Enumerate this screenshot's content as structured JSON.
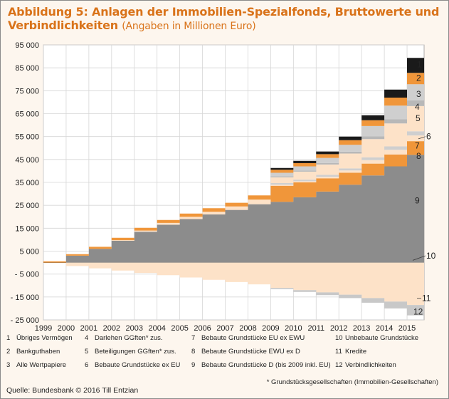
{
  "title": {
    "line1": "Abbildung 5: Anlagen der Immobilien-Spezialfonds, Bruttowerte und",
    "line2": "Verbindlichkeiten",
    "subtitle": "(Angaben in Millionen Euro)"
  },
  "chart_data": {
    "type": "area",
    "title": "Abbildung 5: Anlagen der Immobilien-Spezialfonds, Bruttowerte und Verbindlichkeiten",
    "unit": "(Angaben in Millionen Euro)",
    "ylim": [
      -25000,
      95000
    ],
    "yticks": [
      "95 000",
      "85 000",
      "75 000",
      "65 000",
      "55 000",
      "45 000",
      "35 000",
      "25 000",
      "15 000",
      "5 000",
      "- 5 000",
      "- 15 000",
      "- 25 000"
    ],
    "ytick_values": [
      95000,
      85000,
      75000,
      65000,
      55000,
      45000,
      35000,
      25000,
      15000,
      5000,
      -5000,
      -15000,
      -25000
    ],
    "x": [
      1999,
      2000,
      2001,
      2002,
      2003,
      2004,
      2005,
      2006,
      2007,
      2008,
      2009,
      2010,
      2011,
      2012,
      2013,
      2014,
      2015
    ],
    "xlim": [
      1999,
      2015.75
    ],
    "grid": true,
    "stacking": "stacked",
    "assets_order_bottom_to_top": [
      "9",
      "8",
      "7",
      "6",
      "5",
      "4",
      "3",
      "2",
      "1"
    ],
    "series": [
      {
        "name": "9",
        "color": "#8c8c8c",
        "values": [
          0,
          3000,
          6000,
          9500,
          13500,
          16500,
          19000,
          21000,
          23000,
          25500,
          26500,
          28500,
          31000,
          34000,
          38000,
          42000,
          47000
        ]
      },
      {
        "name": "8",
        "color": "#f0963a",
        "values": [
          0,
          0,
          0,
          0,
          0,
          0,
          0,
          0,
          0,
          0,
          7000,
          6500,
          5800,
          5200,
          5200,
          5200,
          6000
        ]
      },
      {
        "name": "7",
        "color": "#fde2c8",
        "values": [
          0,
          0,
          0,
          0,
          0,
          0,
          0,
          0,
          0,
          0,
          500,
          500,
          700,
          1000,
          1500,
          2000,
          2500
        ]
      },
      {
        "name": "6",
        "color": "#cfcfcf",
        "values": [
          0,
          0,
          0,
          0,
          0,
          0,
          0,
          0,
          0,
          0,
          700,
          700,
          800,
          900,
          1200,
          1500,
          1800
        ]
      },
      {
        "name": "5",
        "color": "#fde2c8",
        "values": [
          0,
          0,
          0,
          300,
          500,
          800,
          1000,
          1200,
          1500,
          2000,
          2500,
          3500,
          4500,
          6500,
          8000,
          10000,
          11000
        ]
      },
      {
        "name": "4",
        "color": "#b8b8b8",
        "values": [
          0,
          0,
          0,
          0,
          0,
          0,
          0,
          0,
          0,
          0,
          500,
          500,
          700,
          800,
          1200,
          1800,
          2500
        ]
      },
      {
        "name": "3",
        "color": "#cfcfcf",
        "values": [
          0,
          0,
          0,
          0,
          0,
          0,
          0,
          0,
          0,
          0,
          1500,
          1800,
          2200,
          3000,
          4500,
          6000,
          7000
        ]
      },
      {
        "name": "2",
        "color": "#f0963a",
        "values": [
          600,
          700,
          900,
          1000,
          1200,
          1300,
          1400,
          1500,
          1600,
          1800,
          1300,
          1400,
          1600,
          2000,
          2500,
          3500,
          5000
        ]
      },
      {
        "name": "1",
        "color": "#1a1a1a",
        "values": [
          0,
          0,
          0,
          0,
          0,
          0,
          0,
          0,
          0,
          0,
          800,
          1000,
          1200,
          1600,
          2200,
          3500,
          6500
        ]
      },
      {
        "name": "10",
        "color": "#8c8c8c",
        "values": [
          0,
          0,
          0,
          0,
          0,
          0,
          0,
          0,
          0,
          0,
          0,
          0,
          0,
          0,
          300,
          600,
          900
        ]
      },
      {
        "name": "11",
        "color": "#fde2c8",
        "values": [
          0,
          -1500,
          -2500,
          -3500,
          -4500,
          -5500,
          -6500,
          -7500,
          -8500,
          -9500,
          -11000,
          -12000,
          -13000,
          -14000,
          -15500,
          -17000,
          -18500
        ]
      },
      {
        "name": "12",
        "color": "#c8c8c8",
        "values": [
          0,
          0,
          0,
          0,
          0,
          0,
          0,
          0,
          0,
          0,
          -500,
          -800,
          -1200,
          -1500,
          -2000,
          -3000,
          -4500
        ]
      }
    ],
    "series_labels": [
      "1",
      "2",
      "3",
      "4",
      "5",
      "6",
      "7",
      "8",
      "9",
      "10",
      "11",
      "12"
    ],
    "legend": [
      {
        "num": "1",
        "text": "Übriges Vermögen"
      },
      {
        "num": "2",
        "text": "Bankguthaben"
      },
      {
        "num": "3",
        "text": "Alle Wertpapiere"
      },
      {
        "num": "4",
        "text": "Darlehen GGften* zus."
      },
      {
        "num": "5",
        "text": "Beteiligungen GGften* zus."
      },
      {
        "num": "6",
        "text": "Bebaute Grundstücke ex EU"
      },
      {
        "num": "7",
        "text": "Bebaute Grundstücke EU ex EWU"
      },
      {
        "num": "8",
        "text": "Bebaute Grundstücke EWU ex D"
      },
      {
        "num": "9",
        "text": "Bebaute Grundstücke D (bis 2009 inkl. EU)"
      },
      {
        "num": "10",
        "text": "Unbebaute Grundstücke"
      },
      {
        "num": "11",
        "text": "Kredite"
      },
      {
        "num": "12",
        "text": "Verbindlichkeiten"
      }
    ]
  },
  "footnote": "* Grundstücksgesellschaften (Immobilien-Gesellschaften)",
  "source": "Quelle: Bundesbank © 2016 Till Entzian"
}
